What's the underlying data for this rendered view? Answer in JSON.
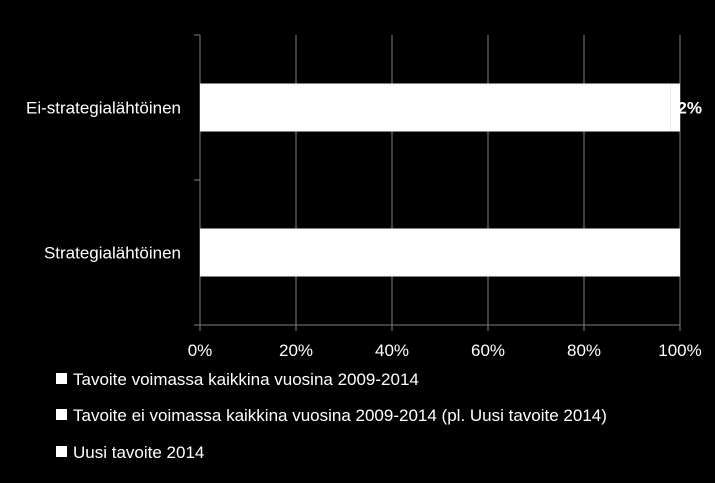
{
  "chart_data": {
    "type": "bar",
    "orientation": "horizontal",
    "stacked": true,
    "percent_stacked": true,
    "categories": [
      "Ei-strategialähtöinen",
      "Strategialähtöinen"
    ],
    "series": [
      {
        "name": "Tavoite voimassa kaikkina vuosina 2009-2014",
        "values": [
          98,
          100
        ],
        "color": "#ffffff"
      },
      {
        "name": "Tavoite ei voimassa kaikkina vuosina 2009-2014 (pl. Uusi tavoite 2014)",
        "values": [
          0,
          0
        ],
        "color": "#ffffff"
      },
      {
        "name": "Uusi tavoite 2014",
        "values": [
          2,
          0
        ],
        "color": "#ffffff"
      }
    ],
    "data_labels": [
      {
        "category": "Ei-strategialähtöinen",
        "text": "2%"
      }
    ],
    "xlim": [
      0,
      100
    ],
    "x_ticks": [
      "0%",
      "20%",
      "40%",
      "60%",
      "80%",
      "100%"
    ],
    "title": "",
    "xlabel": "",
    "ylabel": "",
    "grid": true,
    "legend_position": "bottom-left",
    "background": "#000000",
    "gridline_color": "#7f7f7f"
  }
}
